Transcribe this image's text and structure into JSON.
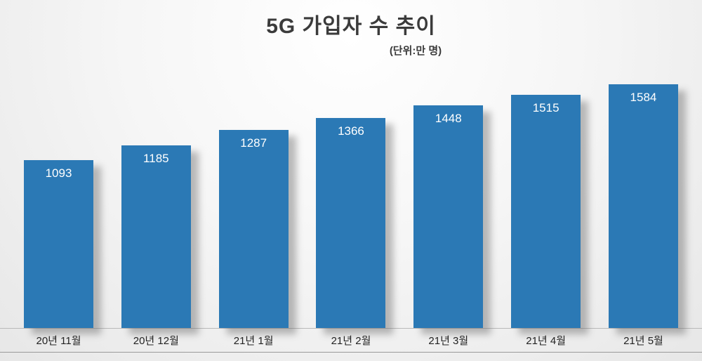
{
  "chart_data": {
    "type": "bar",
    "title": "5G 가입자 수 추이",
    "subtitle": "(단위:만 명)",
    "categories": [
      "20년 11월",
      "20년 12월",
      "21년 1월",
      "21년 2월",
      "21년 3월",
      "21년 4월",
      "21년 5월"
    ],
    "values": [
      1093,
      1185,
      1287,
      1366,
      1448,
      1515,
      1584
    ],
    "bar_color": "#2b79b5",
    "value_label_color": "#ffffff",
    "xlabel": "",
    "ylabel": "",
    "ylim": [
      0,
      1600
    ],
    "grid": false,
    "legend": "none"
  }
}
